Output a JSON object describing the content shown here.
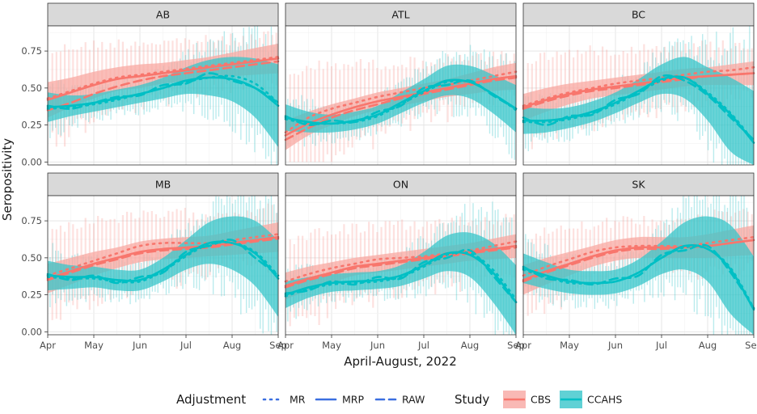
{
  "chart_data": {
    "type": "line",
    "title": "",
    "xlabel": "April-August, 2022",
    "ylabel": "Seropositivity",
    "x_ticks": [
      "Apr",
      "May",
      "Jun",
      "Jul",
      "Aug",
      "Sep"
    ],
    "x_tick_values": [
      0,
      1,
      2,
      3,
      4,
      5
    ],
    "xlim": [
      0,
      5
    ],
    "y_ticks": [
      "0.00",
      "0.25",
      "0.50",
      "0.75"
    ],
    "y_tick_values": [
      0,
      0.25,
      0.5,
      0.75
    ],
    "ylim": [
      -0.02,
      0.92
    ],
    "grid": true,
    "facet_layout": "2 rows x 3 columns",
    "legend": {
      "placement": "bottom",
      "adjustment_title": "Adjustment",
      "adjustment_items": [
        {
          "label": "MR",
          "linetype": "dotted"
        },
        {
          "label": "MRP",
          "linetype": "solid"
        },
        {
          "label": "RAW",
          "linetype": "dashed"
        }
      ],
      "study_title": "Study",
      "study_items": [
        {
          "label": "CBS",
          "color": "#F8766D",
          "fill": "#F8A8A2"
        },
        {
          "label": "CCAHS",
          "color": "#00BFC4",
          "fill": "#38C6CA"
        }
      ],
      "adjustment_line_color": "#3B6FE0"
    },
    "panels": [
      {
        "name": "AB",
        "x": [
          0,
          0.5,
          1,
          1.5,
          2,
          2.5,
          3,
          3.5,
          4,
          4.5,
          5
        ],
        "CBS_MRP": [
          0.42,
          0.47,
          0.52,
          0.56,
          0.58,
          0.6,
          0.62,
          0.64,
          0.66,
          0.68,
          0.7
        ],
        "CBS_MRP_band": [
          0.12,
          0.1,
          0.09,
          0.08,
          0.08,
          0.07,
          0.07,
          0.07,
          0.08,
          0.09,
          0.1
        ],
        "CBS_MR": [
          0.43,
          0.48,
          0.53,
          0.57,
          0.59,
          0.61,
          0.63,
          0.65,
          0.67,
          0.69,
          0.71
        ],
        "CBS_RAW": [
          0.35,
          0.4,
          0.46,
          0.51,
          0.55,
          0.58,
          0.6,
          0.62,
          0.64,
          0.66,
          0.68
        ],
        "CBS_upper_noise": [
          0.78,
          0.82,
          0.83,
          0.84,
          0.85,
          0.85,
          0.86,
          0.86,
          0.87,
          0.88,
          0.9
        ],
        "CCAHS_MRP": [
          0.37,
          0.38,
          0.4,
          0.43,
          0.46,
          0.5,
          0.55,
          0.57,
          0.56,
          0.5,
          0.38
        ],
        "CCAHS_MRP_band": [
          0.1,
          0.07,
          0.06,
          0.06,
          0.06,
          0.07,
          0.09,
          0.12,
          0.15,
          0.2,
          0.28
        ],
        "CCAHS_MR": [
          0.36,
          0.37,
          0.39,
          0.42,
          0.46,
          0.5,
          0.54,
          0.57,
          0.58,
          0.53,
          0.4
        ],
        "CCAHS_RAW": [
          0.38,
          0.36,
          0.4,
          0.44,
          0.45,
          0.52,
          0.53,
          0.6,
          0.55,
          0.5,
          0.4
        ]
      },
      {
        "name": "ATL",
        "x": [
          0,
          0.5,
          1,
          1.5,
          2,
          2.5,
          3,
          3.5,
          4,
          4.5,
          5
        ],
        "CBS_MRP": [
          0.18,
          0.26,
          0.32,
          0.37,
          0.41,
          0.44,
          0.47,
          0.5,
          0.53,
          0.56,
          0.58
        ],
        "CBS_MRP_band": [
          0.1,
          0.08,
          0.07,
          0.06,
          0.06,
          0.06,
          0.06,
          0.06,
          0.07,
          0.08,
          0.09
        ],
        "CBS_MR": [
          0.2,
          0.3,
          0.36,
          0.4,
          0.44,
          0.47,
          0.5,
          0.52,
          0.55,
          0.58,
          0.61
        ],
        "CBS_RAW": [
          0.15,
          0.23,
          0.3,
          0.35,
          0.39,
          0.43,
          0.46,
          0.49,
          0.52,
          0.55,
          0.57
        ],
        "CBS_upper_noise": [
          0.62,
          0.68,
          0.7,
          0.7,
          0.7,
          0.71,
          0.72,
          0.73,
          0.74,
          0.75,
          0.75
        ],
        "CCAHS_MRP": [
          0.3,
          0.27,
          0.26,
          0.28,
          0.32,
          0.4,
          0.48,
          0.55,
          0.54,
          0.46,
          0.36
        ],
        "CCAHS_MRP_band": [
          0.09,
          0.07,
          0.06,
          0.06,
          0.06,
          0.07,
          0.08,
          0.1,
          0.11,
          0.13,
          0.16
        ],
        "CCAHS_MR": [
          0.29,
          0.26,
          0.26,
          0.27,
          0.31,
          0.39,
          0.47,
          0.54,
          0.54,
          0.46,
          0.35
        ],
        "CCAHS_RAW": [
          0.31,
          0.25,
          0.28,
          0.27,
          0.34,
          0.38,
          0.5,
          0.52,
          0.55,
          0.45,
          0.36
        ]
      },
      {
        "name": "BC",
        "x": [
          0,
          0.5,
          1,
          1.5,
          2,
          2.5,
          3,
          3.5,
          4,
          4.5,
          5
        ],
        "CBS_MRP": [
          0.37,
          0.42,
          0.46,
          0.49,
          0.51,
          0.53,
          0.55,
          0.57,
          0.58,
          0.59,
          0.6
        ],
        "CBS_MRP_band": [
          0.09,
          0.08,
          0.07,
          0.06,
          0.06,
          0.06,
          0.06,
          0.06,
          0.06,
          0.07,
          0.08
        ],
        "CBS_MR": [
          0.38,
          0.43,
          0.47,
          0.5,
          0.53,
          0.55,
          0.57,
          0.59,
          0.61,
          0.62,
          0.64
        ],
        "CBS_RAW": [
          0.36,
          0.41,
          0.45,
          0.48,
          0.5,
          0.52,
          0.54,
          0.56,
          0.58,
          0.59,
          0.6
        ],
        "CBS_upper_noise": [
          0.72,
          0.76,
          0.78,
          0.79,
          0.8,
          0.81,
          0.82,
          0.82,
          0.83,
          0.83,
          0.84
        ],
        "CCAHS_MRP": [
          0.28,
          0.28,
          0.3,
          0.34,
          0.4,
          0.48,
          0.56,
          0.57,
          0.46,
          0.32,
          0.13
        ],
        "CCAHS_MRP_band": [
          0.09,
          0.08,
          0.07,
          0.07,
          0.07,
          0.08,
          0.1,
          0.14,
          0.18,
          0.25,
          0.35
        ],
        "CCAHS_MR": [
          0.27,
          0.27,
          0.29,
          0.33,
          0.39,
          0.47,
          0.55,
          0.57,
          0.47,
          0.33,
          0.14
        ],
        "CCAHS_RAW": [
          0.3,
          0.25,
          0.31,
          0.32,
          0.42,
          0.46,
          0.58,
          0.55,
          0.45,
          0.3,
          0.15
        ]
      },
      {
        "name": "MB",
        "x": [
          0,
          0.5,
          1,
          1.5,
          2,
          2.5,
          3,
          3.5,
          4,
          4.5,
          5
        ],
        "CBS_MRP": [
          0.36,
          0.41,
          0.46,
          0.5,
          0.54,
          0.56,
          0.57,
          0.58,
          0.6,
          0.62,
          0.64
        ],
        "CBS_MRP_band": [
          0.1,
          0.09,
          0.08,
          0.07,
          0.07,
          0.07,
          0.07,
          0.07,
          0.08,
          0.09,
          0.1
        ],
        "CBS_MR": [
          0.38,
          0.43,
          0.48,
          0.53,
          0.58,
          0.6,
          0.6,
          0.6,
          0.62,
          0.64,
          0.66
        ],
        "CBS_RAW": [
          0.35,
          0.4,
          0.45,
          0.49,
          0.53,
          0.55,
          0.56,
          0.57,
          0.59,
          0.61,
          0.63
        ],
        "CBS_upper_noise": [
          0.7,
          0.76,
          0.8,
          0.81,
          0.82,
          0.83,
          0.84,
          0.84,
          0.85,
          0.86,
          0.88
        ],
        "CCAHS_MRP": [
          0.38,
          0.37,
          0.37,
          0.35,
          0.35,
          0.42,
          0.52,
          0.6,
          0.6,
          0.53,
          0.36
        ],
        "CCAHS_MRP_band": [
          0.1,
          0.08,
          0.07,
          0.07,
          0.07,
          0.08,
          0.1,
          0.14,
          0.18,
          0.22,
          0.26
        ],
        "CCAHS_MR": [
          0.37,
          0.36,
          0.36,
          0.34,
          0.34,
          0.41,
          0.51,
          0.59,
          0.6,
          0.54,
          0.38
        ],
        "CCAHS_RAW": [
          0.39,
          0.35,
          0.38,
          0.33,
          0.37,
          0.4,
          0.54,
          0.58,
          0.62,
          0.5,
          0.38
        ]
      },
      {
        "name": "ON",
        "x": [
          0,
          0.5,
          1,
          1.5,
          2,
          2.5,
          3,
          3.5,
          4,
          4.5,
          5
        ],
        "CBS_MRP": [
          0.31,
          0.36,
          0.4,
          0.44,
          0.46,
          0.48,
          0.5,
          0.52,
          0.54,
          0.56,
          0.58
        ],
        "CBS_MRP_band": [
          0.09,
          0.08,
          0.07,
          0.06,
          0.06,
          0.06,
          0.06,
          0.06,
          0.06,
          0.07,
          0.08
        ],
        "CBS_MR": [
          0.34,
          0.39,
          0.43,
          0.46,
          0.49,
          0.5,
          0.51,
          0.53,
          0.55,
          0.58,
          0.61
        ],
        "CBS_RAW": [
          0.3,
          0.35,
          0.39,
          0.43,
          0.45,
          0.47,
          0.49,
          0.51,
          0.53,
          0.55,
          0.57
        ],
        "CBS_upper_noise": [
          0.65,
          0.7,
          0.73,
          0.74,
          0.75,
          0.76,
          0.77,
          0.78,
          0.79,
          0.8,
          0.82
        ],
        "CCAHS_MRP": [
          0.25,
          0.3,
          0.33,
          0.34,
          0.35,
          0.38,
          0.45,
          0.53,
          0.52,
          0.4,
          0.2
        ],
        "CCAHS_MRP_band": [
          0.09,
          0.07,
          0.06,
          0.06,
          0.06,
          0.07,
          0.09,
          0.12,
          0.15,
          0.2,
          0.25
        ],
        "CCAHS_MR": [
          0.24,
          0.29,
          0.32,
          0.33,
          0.34,
          0.37,
          0.44,
          0.52,
          0.53,
          0.42,
          0.22
        ],
        "CCAHS_RAW": [
          0.26,
          0.28,
          0.34,
          0.32,
          0.37,
          0.36,
          0.47,
          0.5,
          0.55,
          0.38,
          0.2
        ]
      },
      {
        "name": "SK",
        "x": [
          0,
          0.5,
          1,
          1.5,
          2,
          2.5,
          3,
          3.5,
          4,
          4.5,
          5
        ],
        "CBS_MRP": [
          0.35,
          0.41,
          0.46,
          0.51,
          0.55,
          0.57,
          0.57,
          0.57,
          0.58,
          0.6,
          0.62
        ],
        "CBS_MRP_band": [
          0.1,
          0.09,
          0.08,
          0.07,
          0.07,
          0.07,
          0.07,
          0.07,
          0.08,
          0.09,
          0.1
        ],
        "CBS_MR": [
          0.38,
          0.44,
          0.49,
          0.54,
          0.57,
          0.58,
          0.58,
          0.58,
          0.6,
          0.62,
          0.64
        ],
        "CBS_RAW": [
          0.34,
          0.4,
          0.45,
          0.5,
          0.54,
          0.56,
          0.56,
          0.57,
          0.58,
          0.6,
          0.62
        ],
        "CBS_upper_noise": [
          0.66,
          0.72,
          0.76,
          0.77,
          0.78,
          0.79,
          0.8,
          0.81,
          0.82,
          0.84,
          0.86
        ],
        "CCAHS_MRP": [
          0.43,
          0.38,
          0.34,
          0.33,
          0.34,
          0.4,
          0.5,
          0.58,
          0.56,
          0.42,
          0.15
        ],
        "CCAHS_MRP_band": [
          0.1,
          0.09,
          0.08,
          0.08,
          0.08,
          0.09,
          0.11,
          0.16,
          0.22,
          0.3,
          0.36
        ],
        "CCAHS_MR": [
          0.42,
          0.37,
          0.33,
          0.33,
          0.34,
          0.4,
          0.5,
          0.57,
          0.56,
          0.43,
          0.16
        ],
        "CCAHS_RAW": [
          0.44,
          0.36,
          0.35,
          0.32,
          0.36,
          0.38,
          0.52,
          0.55,
          0.58,
          0.4,
          0.16
        ]
      }
    ]
  }
}
